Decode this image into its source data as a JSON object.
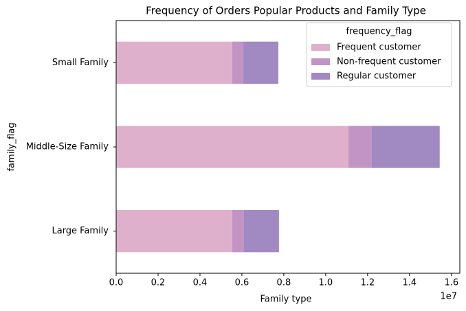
{
  "chart_data": {
    "type": "stacked-barh",
    "title": "Frequency of Orders Popular Products and Family Type",
    "xlabel": "Family type",
    "ylabel": "family_flag",
    "x_offset_text": "1e7",
    "categories": [
      "Large Family",
      "Middle-Size Family",
      "Small Family"
    ],
    "series": [
      {
        "name": "Frequent customer",
        "color": "#dfb0cb",
        "values": [
          0.554,
          1.108,
          0.554
        ]
      },
      {
        "name": "Non-frequent customer",
        "color": "#c294c4",
        "values": [
          0.056,
          0.112,
          0.053
        ]
      },
      {
        "name": "Regular customer",
        "color": "#a189c1",
        "values": [
          0.167,
          0.324,
          0.167
        ]
      }
    ],
    "legend_title": "frequency_flag",
    "legend_position": "upper right",
    "xlim": [
      0,
      1.64
    ],
    "xticks": [
      {
        "value": 0,
        "label": "0.0"
      },
      0.2,
      0.4,
      0.6,
      0.8,
      {
        "value": 1,
        "label": "1.0"
      },
      1.2,
      1.4,
      1.6
    ]
  }
}
